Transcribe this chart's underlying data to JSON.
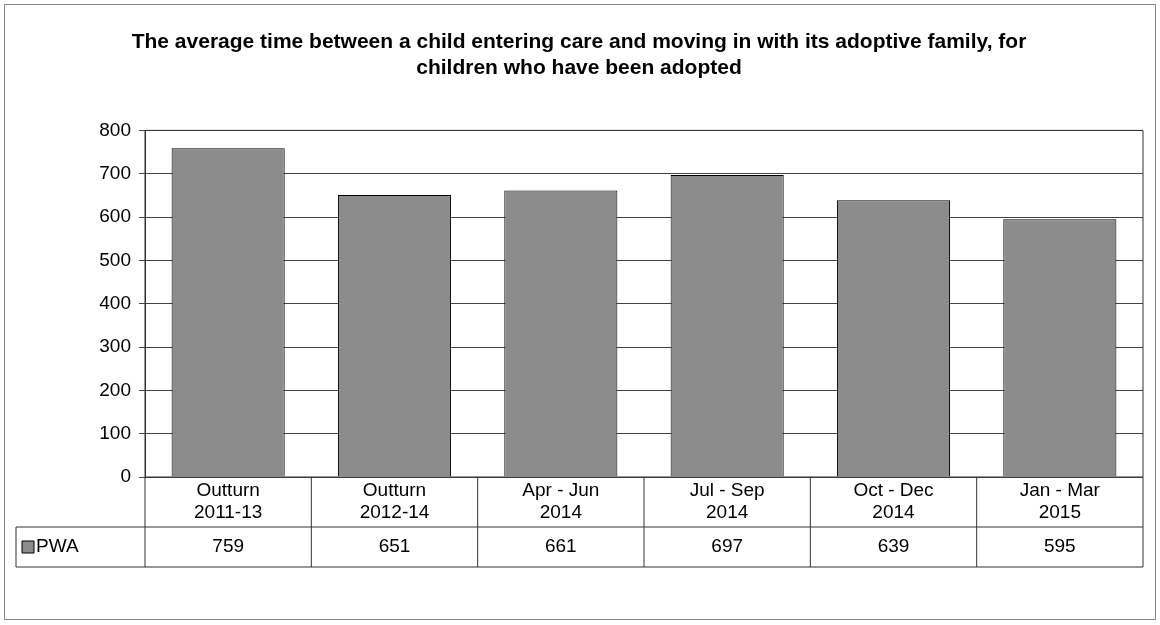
{
  "chart_data": {
    "type": "bar",
    "title": "The average time between a child entering care and moving in with its adoptive family, for children who have been adopted",
    "categories": [
      "Outturn 2011-13",
      "Outturn 2012-14",
      "Apr - Jun 2014",
      "Jul - Sep 2014",
      "Oct - Dec 2014",
      "Jan - Mar 2015"
    ],
    "series": [
      {
        "name": "PWA",
        "color": "#8c8c8c",
        "values": [
          759,
          651,
          661,
          697,
          639,
          595
        ]
      }
    ],
    "ylim": [
      0,
      800
    ],
    "yticks": [
      0,
      100,
      200,
      300,
      400,
      500,
      600,
      700,
      800
    ],
    "grid": "y",
    "data_labels": true,
    "legend": "bottom left"
  }
}
